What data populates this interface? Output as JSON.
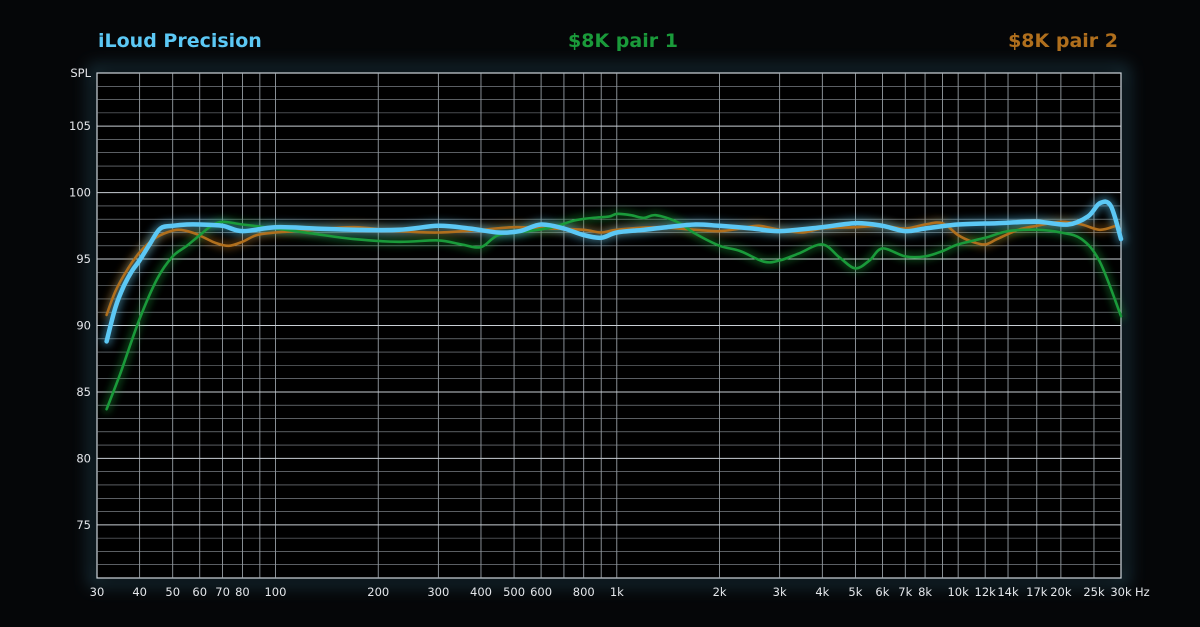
{
  "chart_data": {
    "type": "line",
    "xlabel": "Hz",
    "ylabel": "SPL",
    "x_scale": "log",
    "xlim": [
      30,
      30000
    ],
    "ylim": [
      71,
      109
    ],
    "grid": true,
    "legend_placement": "top",
    "x_ticks": [
      {
        "v": 30,
        "label": "30"
      },
      {
        "v": 40,
        "label": "40"
      },
      {
        "v": 50,
        "label": "50"
      },
      {
        "v": 60,
        "label": "60"
      },
      {
        "v": 70,
        "label": "70"
      },
      {
        "v": 80,
        "label": "80"
      },
      {
        "v": 100,
        "label": "100"
      },
      {
        "v": 200,
        "label": "200"
      },
      {
        "v": 300,
        "label": "300"
      },
      {
        "v": 400,
        "label": "400"
      },
      {
        "v": 500,
        "label": "500"
      },
      {
        "v": 600,
        "label": "600"
      },
      {
        "v": 800,
        "label": "800"
      },
      {
        "v": 1000,
        "label": "1k"
      },
      {
        "v": 2000,
        "label": "2k"
      },
      {
        "v": 3000,
        "label": "3k"
      },
      {
        "v": 4000,
        "label": "4k"
      },
      {
        "v": 5000,
        "label": "5k"
      },
      {
        "v": 6000,
        "label": "6k"
      },
      {
        "v": 7000,
        "label": "7k"
      },
      {
        "v": 8000,
        "label": "8k"
      },
      {
        "v": 10000,
        "label": "10k"
      },
      {
        "v": 12000,
        "label": "12k"
      },
      {
        "v": 14000,
        "label": "14k"
      },
      {
        "v": 17000,
        "label": "17k"
      },
      {
        "v": 20000,
        "label": "20k"
      },
      {
        "v": 25000,
        "label": "25k"
      },
      {
        "v": 30000,
        "label": "30k"
      }
    ],
    "y_ticks": [
      {
        "v": 75,
        "label": "75"
      },
      {
        "v": 80,
        "label": "80"
      },
      {
        "v": 85,
        "label": "85"
      },
      {
        "v": 90,
        "label": "90"
      },
      {
        "v": 95,
        "label": "95"
      },
      {
        "v": 100,
        "label": "100"
      },
      {
        "v": 105,
        "label": "105"
      }
    ],
    "series": [
      {
        "name": "iLoud Precision",
        "color": "#5cc8f5",
        "x": [
          32,
          34,
          36,
          38,
          40,
          43,
          46,
          50,
          55,
          60,
          70,
          80,
          100,
          130,
          170,
          230,
          300,
          370,
          450,
          520,
          600,
          700,
          800,
          900,
          1000,
          1200,
          1400,
          1700,
          2000,
          2500,
          3000,
          4000,
          5000,
          6000,
          7000,
          8000,
          10000,
          13000,
          17000,
          21000,
          24000,
          26000,
          28000,
          30000
        ],
        "y": [
          88.8,
          91.4,
          93.0,
          94.1,
          94.9,
          96.2,
          97.3,
          97.5,
          97.6,
          97.6,
          97.5,
          97.1,
          97.4,
          97.3,
          97.2,
          97.2,
          97.5,
          97.3,
          97.0,
          97.1,
          97.6,
          97.3,
          96.8,
          96.6,
          97.0,
          97.2,
          97.4,
          97.6,
          97.5,
          97.3,
          97.1,
          97.4,
          97.7,
          97.5,
          97.1,
          97.3,
          97.6,
          97.7,
          97.8,
          97.6,
          98.2,
          99.2,
          99.0,
          96.5
        ]
      },
      {
        "name": "$8K pair 1",
        "color": "#1a9a3a",
        "x": [
          32,
          35,
          40,
          45,
          50,
          55,
          60,
          65,
          70,
          80,
          100,
          130,
          170,
          230,
          300,
          350,
          400,
          450,
          550,
          650,
          750,
          850,
          950,
          1000,
          1100,
          1200,
          1300,
          1500,
          1700,
          2000,
          2300,
          2700,
          3000,
          3400,
          4000,
          4500,
          5000,
          5500,
          6000,
          7000,
          8000,
          9000,
          10000,
          12000,
          14000,
          17000,
          20000,
          23000,
          26000,
          30000
        ],
        "y": [
          83.7,
          86.3,
          90.5,
          93.5,
          95.2,
          96.0,
          96.8,
          97.5,
          97.8,
          97.6,
          97.3,
          96.9,
          96.5,
          96.3,
          96.4,
          96.1,
          95.9,
          96.8,
          97.1,
          97.4,
          97.9,
          98.1,
          98.2,
          98.4,
          98.3,
          98.1,
          98.3,
          97.8,
          96.9,
          96.0,
          95.6,
          94.8,
          94.9,
          95.4,
          96.1,
          95.1,
          94.3,
          94.9,
          95.8,
          95.2,
          95.2,
          95.6,
          96.1,
          96.6,
          97.1,
          97.2,
          97.0,
          96.5,
          94.8,
          90.7
        ]
      },
      {
        "name": "$8K pair 2",
        "color": "#b06f1d",
        "x": [
          32,
          34,
          37,
          40,
          44,
          48,
          52,
          57,
          62,
          67,
          73,
          80,
          88,
          100,
          130,
          170,
          230,
          300,
          400,
          500,
          650,
          800,
          900,
          1000,
          1300,
          1700,
          2000,
          2300,
          2600,
          3000,
          3500,
          4000,
          5000,
          6000,
          7000,
          8000,
          9000,
          10000,
          11000,
          12000,
          13000,
          15000,
          17000,
          20000,
          23000,
          26000,
          29000
        ],
        "y": [
          90.8,
          92.6,
          94.3,
          95.5,
          96.5,
          97.0,
          97.2,
          97.0,
          96.6,
          96.2,
          96.0,
          96.3,
          96.8,
          97.0,
          97.2,
          97.4,
          97.1,
          97.0,
          97.2,
          97.4,
          97.3,
          97.2,
          97.0,
          97.2,
          97.4,
          97.2,
          97.1,
          97.3,
          97.5,
          97.2,
          97.0,
          97.3,
          97.4,
          97.5,
          97.3,
          97.6,
          97.7,
          96.8,
          96.3,
          96.1,
          96.5,
          97.2,
          97.5,
          97.8,
          97.6,
          97.2,
          97.5
        ]
      }
    ]
  }
}
